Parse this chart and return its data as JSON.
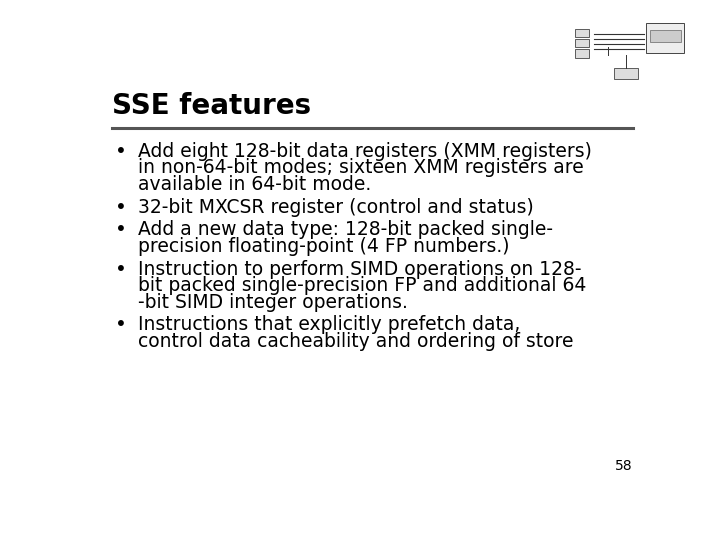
{
  "title": "SSE features",
  "title_fontsize": 20,
  "title_fontweight": "bold",
  "body_fontsize": 13.5,
  "background_color": "#ffffff",
  "title_color": "#000000",
  "text_color": "#000000",
  "line_color": "#555555",
  "page_number": "58",
  "bullets": [
    [
      "Add eight 128-bit data registers (XMM registers)",
      "in non-64-bit modes; sixteen XMM registers are",
      "available in 64-bit mode."
    ],
    [
      "32-bit MXCSR register (control and status)"
    ],
    [
      "Add a new data type: 128-bit packed single-",
      "precision floating-point (4 FP numbers.)"
    ],
    [
      "Instruction to perform SIMD operations on 128-",
      "bit packed single-precision FP and additional 64",
      "-bit SIMD integer operations."
    ],
    [
      "Instructions that explicitly prefetch data,",
      "control data cacheability and ordering of store"
    ]
  ]
}
